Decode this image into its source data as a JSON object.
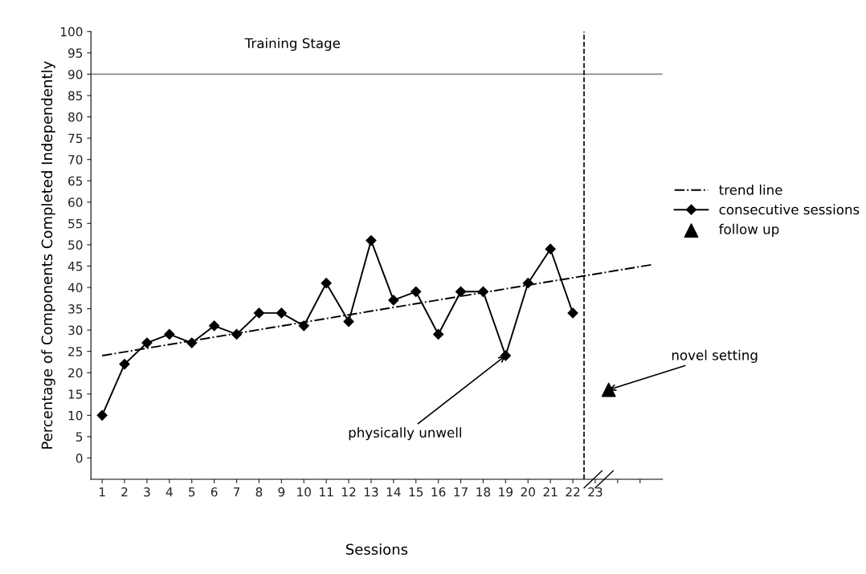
{
  "chart_data": {
    "type": "line",
    "xlabel": "Sessions",
    "ylabel": "Percentage of Components Completed Independently",
    "annotations": [
      "Training Stage",
      {
        "text": "physically unwell",
        "x": 19,
        "y": 24
      },
      {
        "text": "novel setting",
        "x": 23.6,
        "y": 16
      }
    ],
    "xlim": [
      0.5,
      26
    ],
    "ylim": [
      -5,
      100
    ],
    "xticks": [
      1,
      2,
      3,
      4,
      5,
      6,
      7,
      8,
      9,
      10,
      11,
      12,
      13,
      14,
      15,
      16,
      17,
      18,
      19,
      20,
      21,
      22,
      23,
      {
        "value": 24,
        "label": null
      },
      {
        "value": 25,
        "label": null
      }
    ],
    "yticks": [
      0,
      5,
      10,
      15,
      20,
      25,
      30,
      35,
      40,
      45,
      50,
      55,
      60,
      65,
      70,
      75,
      80,
      85,
      90,
      95,
      100
    ],
    "series": [
      {
        "name": "trend line",
        "type": "line",
        "line_style": "dashdot",
        "marker": "none",
        "color": "#000000",
        "x": [
          1,
          25.6
        ],
        "values": [
          24,
          45.4
        ]
      },
      {
        "name": "consecutive sessions",
        "line_style": "solid",
        "marker": "diamond",
        "color": "#000000",
        "x": [
          1,
          2,
          3,
          4,
          5,
          6,
          7,
          8,
          9,
          10,
          11,
          12,
          13,
          14,
          15,
          16,
          17,
          18,
          19,
          20,
          21,
          22
        ],
        "values": [
          10,
          22,
          27,
          29,
          27,
          31,
          29,
          34,
          34,
          31,
          41,
          32,
          51,
          37,
          39,
          29,
          39,
          39,
          24,
          41,
          49,
          34
        ]
      },
      {
        "name": "follow up",
        "type": "scatter",
        "marker": "triangle",
        "color": "#000000",
        "x": [
          23.6
        ],
        "values": [
          16
        ]
      }
    ],
    "ref_lines": [
      {
        "axis": "y",
        "value": 90,
        "label": null,
        "color": "#888888",
        "line_style": "solid"
      },
      {
        "axis": "x",
        "value": 22.5,
        "label": null,
        "color": "#000000",
        "line_style": "dashed"
      }
    ],
    "grid": false,
    "legend": "right"
  }
}
